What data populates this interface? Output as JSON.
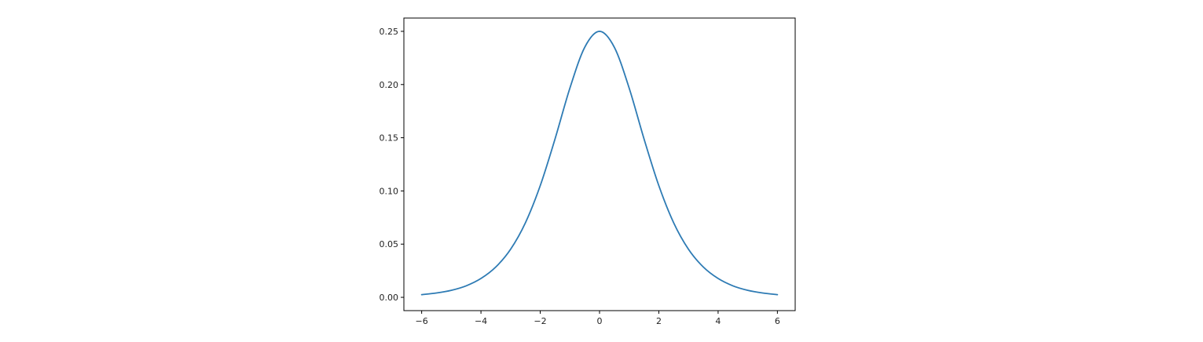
{
  "chart_data": {
    "type": "line",
    "title": "",
    "xlabel": "",
    "ylabel": "",
    "xlim": [
      -6.6,
      6.6
    ],
    "ylim": [
      -0.0125,
      0.2625
    ],
    "x_ticks": [
      -6,
      -4,
      -2,
      0,
      2,
      4,
      6
    ],
    "x_tick_labels": [
      "−6",
      "−4",
      "−2",
      "0",
      "2",
      "4",
      "6"
    ],
    "y_ticks": [
      0.0,
      0.05,
      0.1,
      0.15,
      0.2,
      0.25
    ],
    "y_tick_labels": [
      "0.00",
      "0.05",
      "0.10",
      "0.15",
      "0.20",
      "0.25"
    ],
    "grid": false,
    "legend": "none",
    "series": [
      {
        "color": "#2e7bb4",
        "x": [
          -6,
          -5.5,
          -5,
          -4.5,
          -4,
          -3.5,
          -3,
          -2.5,
          -2,
          -1.5,
          -1,
          -0.5,
          0,
          0.5,
          1,
          1.5,
          2,
          2.5,
          3,
          3.5,
          4,
          4.5,
          5,
          5.5,
          6
        ],
        "y": [
          0.0025,
          0.0041,
          0.0066,
          0.0108,
          0.0177,
          0.0285,
          0.0452,
          0.0701,
          0.105,
          0.149,
          0.1966,
          0.235,
          0.25,
          0.235,
          0.1966,
          0.149,
          0.105,
          0.0701,
          0.0452,
          0.0285,
          0.0177,
          0.0108,
          0.0066,
          0.0041,
          0.0025
        ]
      }
    ]
  }
}
